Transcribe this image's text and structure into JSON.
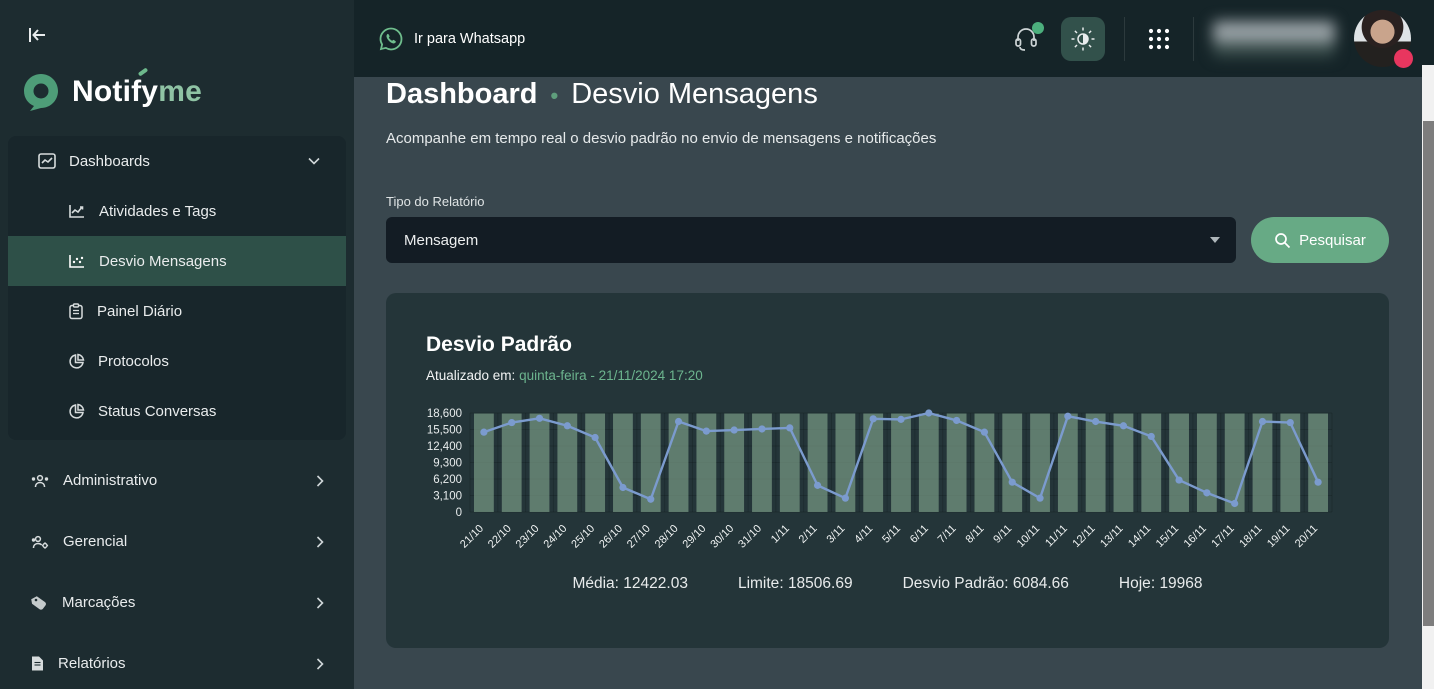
{
  "app": {
    "brand_primary": "Notify",
    "brand_accent": "me"
  },
  "topbar": {
    "whatsapp_label": "Ir para Whatsapp"
  },
  "sidebar": {
    "items": [
      {
        "label": "Dashboards"
      },
      {
        "label": "Atividades e Tags"
      },
      {
        "label": "Desvio Mensagens"
      },
      {
        "label": "Painel Diário"
      },
      {
        "label": "Protocolos"
      },
      {
        "label": "Status Conversas"
      },
      {
        "label": "Administrativo"
      },
      {
        "label": "Gerencial"
      },
      {
        "label": "Marcações"
      },
      {
        "label": "Relatórios"
      }
    ]
  },
  "page": {
    "title_primary": "Dashboard",
    "title_separator": "•",
    "title_secondary": "Desvio Mensagens",
    "subtitle": "Acompanhe em tempo real o desvio padrão no envio de mensagens e notificações",
    "filter_label": "Tipo do Relatório",
    "filter_value": "Mensagem",
    "search_button": "Pesquisar"
  },
  "card": {
    "title": "Desvio Padrão",
    "updated_label": "Atualizado em:",
    "updated_value": "quinta-feira - 21/11/2024 17:20",
    "stats": [
      {
        "label": "Média",
        "value": "12422.03"
      },
      {
        "label": "Limite",
        "value": "18506.69"
      },
      {
        "label": "Desvio Padrão",
        "value": "6084.66"
      },
      {
        "label": "Hoje",
        "value": "19968"
      }
    ]
  },
  "colors": {
    "accent_green": "#67aa85",
    "updated_green": "#6cb48e",
    "bar_green": "#85a890",
    "line_blue": "#7b9bce",
    "status_dot_red": "#e8365f",
    "badge_green": "#4caf7d"
  },
  "chart_data": {
    "type": "bar",
    "title": "Desvio Padrão",
    "xlabel": "",
    "ylabel": "",
    "ylim": [
      0,
      18600
    ],
    "yticks": [
      0,
      3100,
      6200,
      9300,
      12400,
      15500,
      18600
    ],
    "grid": true,
    "legend": "none",
    "categories": [
      "21/10",
      "22/10",
      "23/10",
      "24/10",
      "25/10",
      "26/10",
      "27/10",
      "28/10",
      "29/10",
      "30/10",
      "31/10",
      "1/11",
      "2/11",
      "3/11",
      "4/11",
      "5/11",
      "6/11",
      "7/11",
      "8/11",
      "9/11",
      "10/11",
      "11/11",
      "12/11",
      "13/11",
      "14/11",
      "15/11",
      "16/11",
      "17/11",
      "18/11",
      "19/11",
      "20/11"
    ],
    "series": [
      {
        "name": "Limite",
        "type": "bar",
        "values": [
          18506.69,
          18506.69,
          18506.69,
          18506.69,
          18506.69,
          18506.69,
          18506.69,
          18506.69,
          18506.69,
          18506.69,
          18506.69,
          18506.69,
          18506.69,
          18506.69,
          18506.69,
          18506.69,
          18506.69,
          18506.69,
          18506.69,
          18506.69,
          18506.69,
          18506.69,
          18506.69,
          18506.69,
          18506.69,
          18506.69,
          18506.69,
          18506.69,
          18506.69,
          18506.69,
          18506.69
        ]
      },
      {
        "name": "Mensagens",
        "type": "line",
        "values": [
          15000,
          16800,
          17600,
          16200,
          14000,
          4600,
          2400,
          17000,
          15200,
          15400,
          15600,
          15800,
          5000,
          2600,
          17500,
          17400,
          18600,
          17200,
          15000,
          5600,
          2600,
          18000,
          17000,
          16200,
          14200,
          6000,
          3600,
          1600,
          17000,
          16800,
          5600
        ]
      }
    ]
  }
}
